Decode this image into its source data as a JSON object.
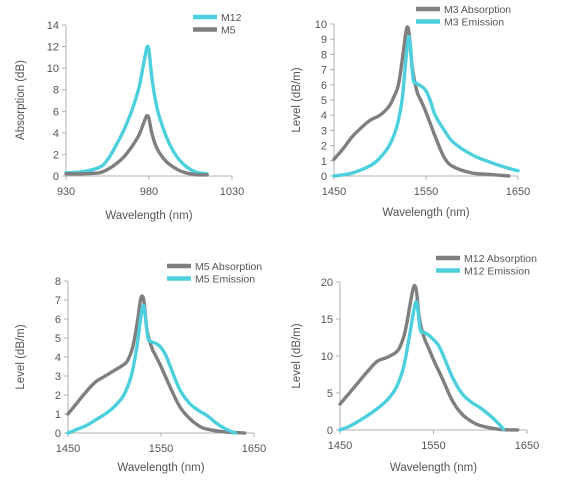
{
  "colors": {
    "gray": "#7f7f7f",
    "cyan": "#4dd0de",
    "axis": "#b0b0b0",
    "text": "#555555"
  },
  "chart_data": [
    {
      "type": "line",
      "xlabel": "Wavelength (nm)",
      "ylabel": "Absorption (dB)",
      "xlim": [
        930,
        1030
      ],
      "ylim": [
        0,
        14
      ],
      "xticks": [
        930,
        980,
        1030
      ],
      "yticks": [
        0,
        2,
        4,
        6,
        8,
        10,
        12,
        14
      ],
      "legend_position": "top-right",
      "series": [
        {
          "name": "M12",
          "color": "#4dd0de",
          "x": [
            930,
            940,
            950,
            955,
            960,
            965,
            970,
            974,
            976,
            978,
            979,
            980,
            982,
            985,
            990,
            995,
            1000,
            1005,
            1010,
            1015
          ],
          "y": [
            0.3,
            0.4,
            0.8,
            1.5,
            2.8,
            4.3,
            6.2,
            8.2,
            9.8,
            11.4,
            12.0,
            11.6,
            8.8,
            6.2,
            3.8,
            2.2,
            1.2,
            0.6,
            0.3,
            0.2
          ]
        },
        {
          "name": "M5",
          "color": "#7f7f7f",
          "x": [
            930,
            940,
            950,
            955,
            960,
            965,
            970,
            974,
            976,
            978,
            979,
            980,
            982,
            985,
            990,
            995,
            1000,
            1005,
            1010,
            1015
          ],
          "y": [
            0.2,
            0.2,
            0.3,
            0.6,
            1.1,
            1.8,
            2.8,
            3.8,
            4.6,
            5.4,
            5.6,
            5.3,
            3.8,
            2.5,
            1.4,
            0.8,
            0.4,
            0.2,
            0.1,
            0.1
          ]
        }
      ]
    },
    {
      "type": "line",
      "xlabel": "Wavelength (nm)",
      "ylabel": "Level (dB/m)",
      "xlim": [
        1450,
        1650
      ],
      "ylim": [
        0,
        10
      ],
      "xticks": [
        1450,
        1550,
        1650
      ],
      "yticks": [
        0,
        1,
        2,
        3,
        4,
        5,
        6,
        7,
        8,
        9,
        10
      ],
      "legend_position": "top-right",
      "series": [
        {
          "name": "M3 Absorption",
          "color": "#7f7f7f",
          "x": [
            1450,
            1460,
            1470,
            1480,
            1490,
            1500,
            1510,
            1515,
            1520,
            1525,
            1528,
            1530,
            1532,
            1535,
            1540,
            1545,
            1550,
            1560,
            1570,
            1580,
            1600,
            1620,
            1640
          ],
          "y": [
            1.1,
            1.8,
            2.6,
            3.2,
            3.7,
            4.0,
            4.6,
            5.2,
            6.0,
            8.0,
            9.4,
            9.8,
            9.2,
            7.2,
            5.6,
            4.9,
            4.2,
            2.6,
            1.2,
            0.6,
            0.2,
            0.1,
            0.0
          ]
        },
        {
          "name": "M3 Emission",
          "color": "#4dd0de",
          "x": [
            1450,
            1470,
            1490,
            1500,
            1510,
            1518,
            1524,
            1528,
            1531,
            1533,
            1536,
            1540,
            1545,
            1550,
            1555,
            1560,
            1570,
            1580,
            1600,
            1620,
            1640,
            1650
          ],
          "y": [
            0.0,
            0.2,
            0.7,
            1.2,
            2.0,
            3.2,
            5.0,
            7.6,
            9.1,
            8.6,
            6.4,
            6.1,
            5.9,
            5.6,
            4.9,
            4.0,
            3.0,
            2.2,
            1.4,
            0.9,
            0.5,
            0.35
          ]
        }
      ]
    },
    {
      "type": "line",
      "xlabel": "Wavelength (nm)",
      "ylabel": "Level (dB/m)",
      "xlim": [
        1450,
        1650
      ],
      "ylim": [
        0,
        8
      ],
      "xticks": [
        1450,
        1550,
        1650
      ],
      "yticks": [
        0,
        1,
        2,
        3,
        4,
        5,
        6,
        7,
        8
      ],
      "legend_position": "top-right",
      "series": [
        {
          "name": "M5 Absorption",
          "color": "#7f7f7f",
          "x": [
            1450,
            1460,
            1470,
            1480,
            1490,
            1500,
            1510,
            1515,
            1520,
            1525,
            1528,
            1530,
            1532,
            1535,
            1540,
            1545,
            1550,
            1560,
            1570,
            1580,
            1590,
            1600,
            1620,
            1640
          ],
          "y": [
            1.0,
            1.6,
            2.2,
            2.7,
            3.0,
            3.3,
            3.6,
            3.9,
            4.6,
            6.0,
            7.0,
            7.2,
            6.8,
            5.4,
            4.5,
            4.0,
            3.5,
            2.4,
            1.4,
            0.8,
            0.4,
            0.2,
            0.05,
            0.0
          ]
        },
        {
          "name": "M5 Emission",
          "color": "#4dd0de",
          "x": [
            1450,
            1460,
            1470,
            1480,
            1490,
            1500,
            1510,
            1518,
            1524,
            1528,
            1531,
            1533,
            1536,
            1540,
            1545,
            1550,
            1555,
            1560,
            1570,
            1580,
            1590,
            1600,
            1610,
            1620,
            1630
          ],
          "y": [
            0.0,
            0.2,
            0.4,
            0.7,
            1.0,
            1.4,
            2.0,
            3.0,
            4.5,
            6.0,
            6.7,
            6.2,
            5.0,
            4.8,
            4.7,
            4.5,
            4.1,
            3.5,
            2.3,
            1.6,
            1.2,
            0.9,
            0.5,
            0.2,
            0.0
          ]
        }
      ]
    },
    {
      "type": "line",
      "xlabel": "Wavelength (nm)",
      "ylabel": "Level (dB/m)",
      "xlim": [
        1450,
        1650
      ],
      "ylim": [
        0,
        20
      ],
      "xticks": [
        1450,
        1550,
        1650
      ],
      "yticks": [
        0,
        5,
        10,
        15,
        20
      ],
      "legend_position": "top-right",
      "series": [
        {
          "name": "M12 Absorption",
          "color": "#7f7f7f",
          "x": [
            1450,
            1460,
            1470,
            1480,
            1490,
            1500,
            1510,
            1515,
            1520,
            1525,
            1528,
            1530,
            1532,
            1535,
            1540,
            1545,
            1550,
            1560,
            1570,
            1580,
            1590,
            1600,
            1620,
            1640
          ],
          "y": [
            3.5,
            5.0,
            6.5,
            8.0,
            9.3,
            9.8,
            10.5,
            11.5,
            13.5,
            17.0,
            19.0,
            19.5,
            18.5,
            15.0,
            12.5,
            11.0,
            9.5,
            6.8,
            4.0,
            2.2,
            1.2,
            0.6,
            0.1,
            0.0
          ]
        },
        {
          "name": "M12 Emission",
          "color": "#4dd0de",
          "x": [
            1450,
            1460,
            1470,
            1480,
            1490,
            1500,
            1510,
            1518,
            1524,
            1528,
            1531,
            1533,
            1536,
            1540,
            1545,
            1550,
            1555,
            1560,
            1570,
            1580,
            1590,
            1600,
            1610,
            1620,
            1625
          ],
          "y": [
            0.0,
            0.5,
            1.2,
            2.0,
            2.9,
            4.0,
            5.7,
            8.5,
            12.5,
            15.5,
            17.3,
            16.5,
            13.5,
            13.2,
            12.8,
            12.2,
            11.5,
            10.2,
            7.2,
            5.0,
            3.8,
            3.0,
            2.0,
            0.8,
            0.1
          ]
        }
      ]
    }
  ]
}
